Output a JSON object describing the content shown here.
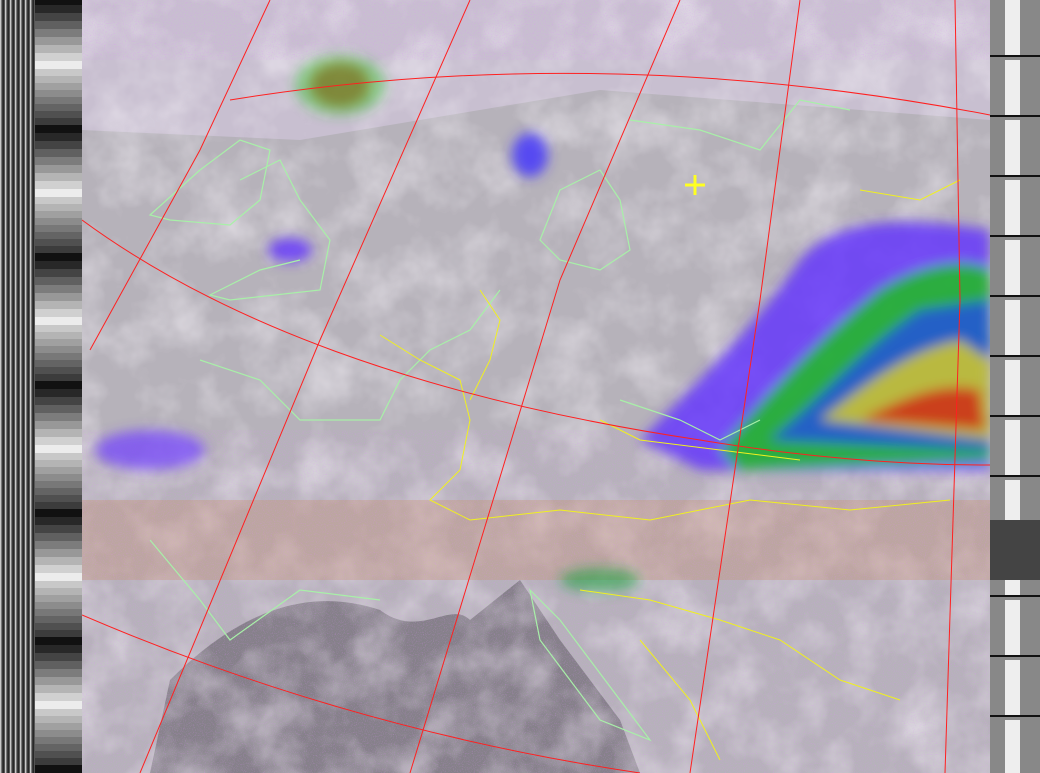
{
  "image": {
    "kind": "weather-satellite-apt-image",
    "palette": {
      "land_cloud_free": "#b8b4bc",
      "sea": "#8e8a92",
      "haze": "#e6d8ea",
      "noise_magenta": "#c040ff",
      "cloud_blue": "#2040ff",
      "cloud_green": "#20d020",
      "cloud_yellow": "#f0e020",
      "cloud_red": "#d02010",
      "graticule": "#ff2020",
      "coastline": "#a8f0a8",
      "border": "#f0f020",
      "marker": "#ffff20"
    },
    "marker_icon": "crosshair-plus-icon"
  }
}
